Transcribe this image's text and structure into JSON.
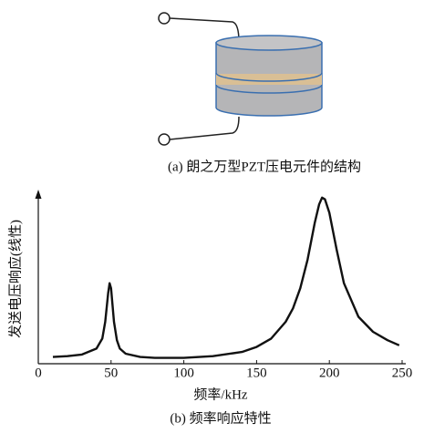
{
  "diagram": {
    "caption": "(a) 朗之万型PZT压电元件的结构"
  },
  "chart_data": {
    "type": "line",
    "title": "(b) 频率响应特性",
    "x_label": "频率/kHz",
    "y_label": "发送电压响应(线性)",
    "x": [
      10,
      20,
      30,
      40,
      44,
      46,
      48,
      49,
      50,
      51,
      52,
      54,
      56,
      60,
      70,
      80,
      100,
      120,
      140,
      150,
      160,
      170,
      175,
      180,
      185,
      190,
      193,
      195,
      197,
      200,
      205,
      210,
      220,
      230,
      240,
      248
    ],
    "values": [
      0.04,
      0.045,
      0.055,
      0.09,
      0.15,
      0.25,
      0.42,
      0.48,
      0.45,
      0.35,
      0.25,
      0.14,
      0.09,
      0.06,
      0.04,
      0.035,
      0.035,
      0.045,
      0.07,
      0.1,
      0.15,
      0.25,
      0.33,
      0.45,
      0.62,
      0.84,
      0.95,
      0.99,
      0.98,
      0.9,
      0.68,
      0.48,
      0.28,
      0.19,
      0.14,
      0.11
    ],
    "color": "#111111",
    "xlim": [
      0,
      250
    ],
    "xticks": [
      0,
      50,
      100,
      150,
      200,
      250
    ],
    "ylim": [
      0,
      1
    ],
    "grid": false
  }
}
